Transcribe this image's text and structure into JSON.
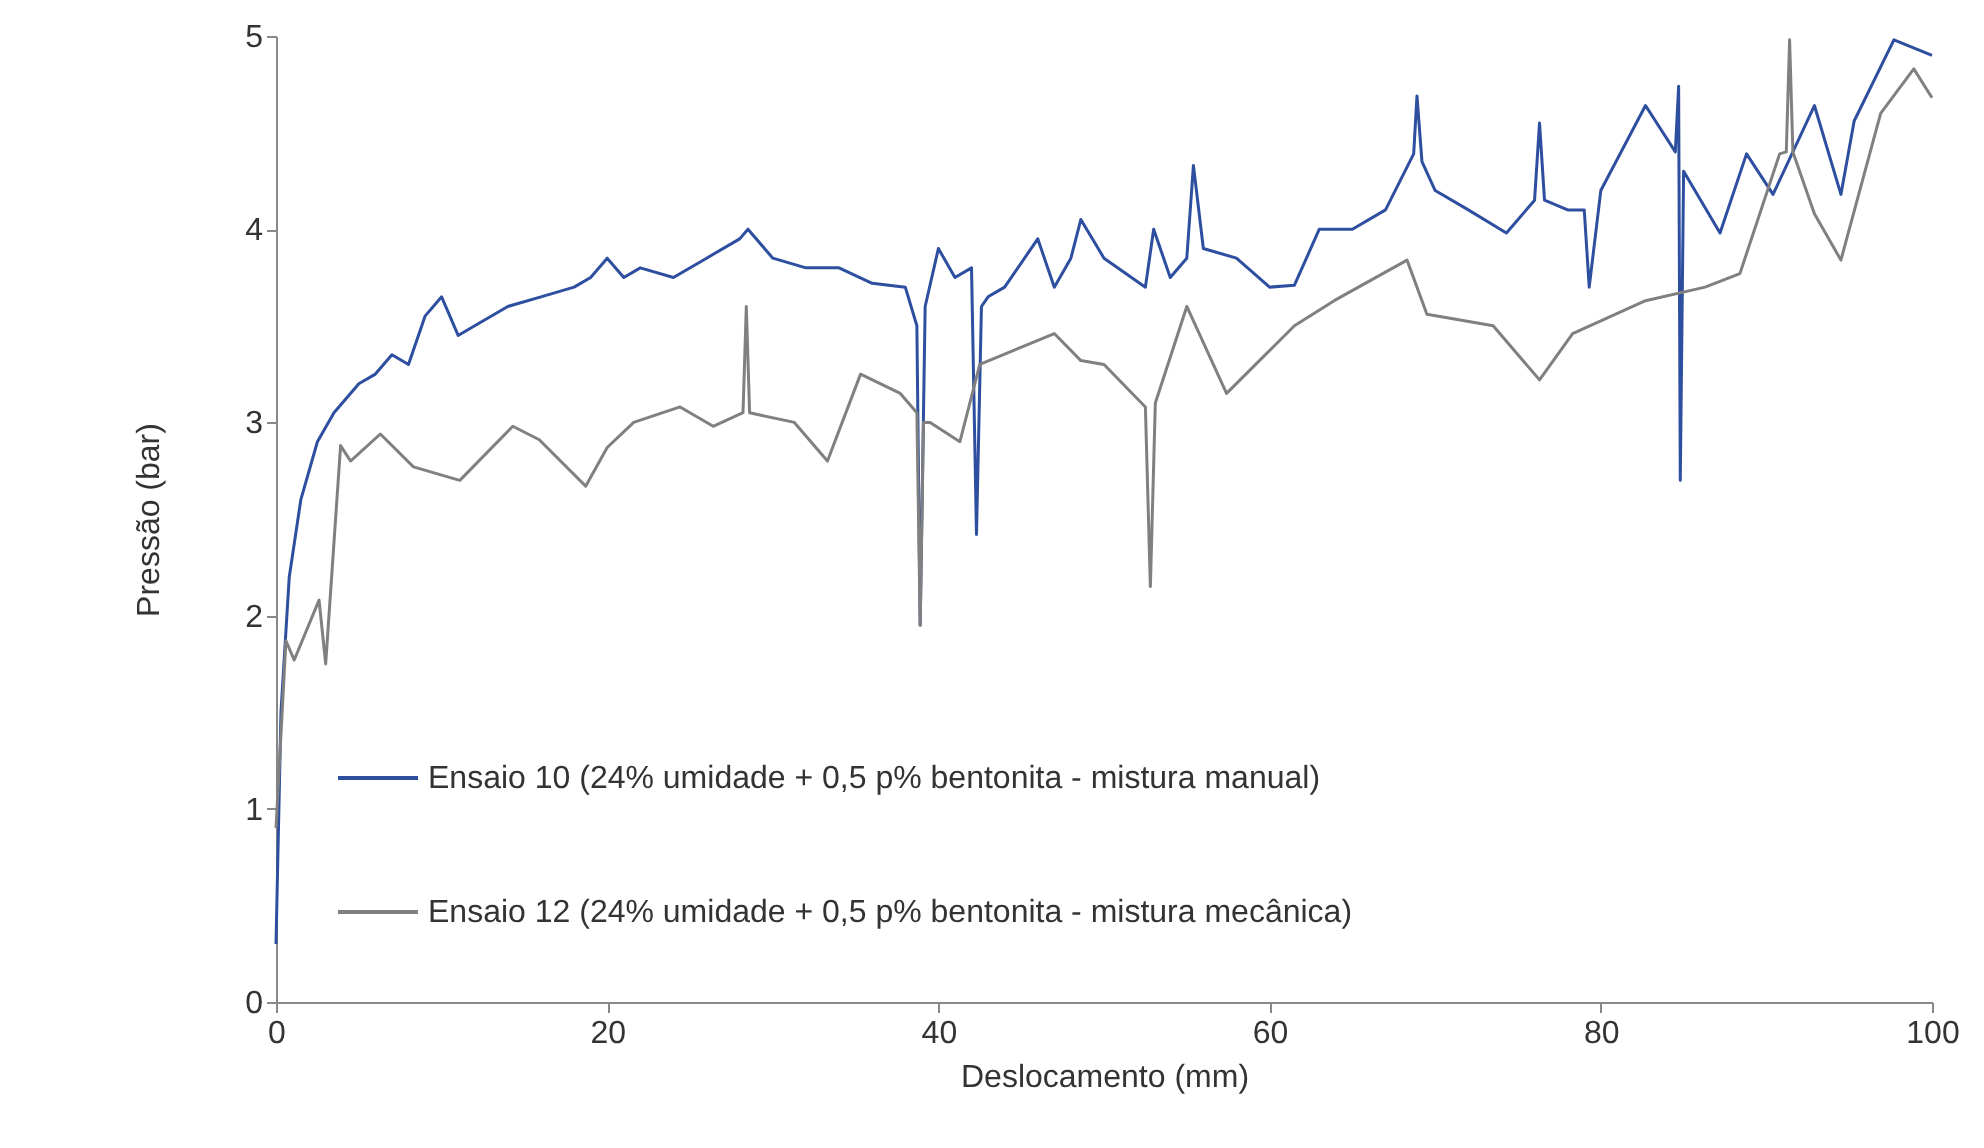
{
  "chart_data": {
    "type": "line",
    "xlabel": "Deslocamento (mm)",
    "ylabel": "Pressão  (bar)",
    "xlim": [
      0,
      100
    ],
    "xticks": [
      0,
      20,
      40,
      60,
      80,
      100
    ],
    "ylim": [
      0,
      5
    ],
    "yticks": [
      0,
      1,
      2,
      3,
      4,
      5
    ],
    "grid": false,
    "legend": "bottom left",
    "marker": "none",
    "line_style": "solid",
    "series": [
      {
        "name": "Ensaio 10 (24% umidade + 0,5 p% bentonita - mistura manual)",
        "color": "#2e4fa0",
        "x": [
          0,
          0.3,
          0.8,
          1.5,
          2.5,
          3.5,
          5,
          6,
          7,
          8,
          9,
          10,
          11,
          12,
          14,
          16,
          18,
          19,
          20,
          21,
          22,
          24,
          26,
          28,
          28.5,
          30,
          32,
          34,
          36,
          38,
          38.7,
          38.9,
          39.2,
          40,
          41,
          42,
          42.3,
          42.6,
          43,
          44,
          46,
          47,
          48,
          48.6,
          50,
          52.5,
          53,
          54,
          55,
          55.4,
          56,
          58,
          60,
          61.5,
          63,
          65,
          67,
          68.7,
          68.9,
          69.2,
          70,
          72,
          74.3,
          76,
          76.3,
          76.6,
          78,
          79,
          79.3,
          80,
          82.7,
          84.5,
          84.7,
          84.8,
          85,
          87.2,
          88.8,
          90.4,
          92.9,
          94.5,
          95.3,
          97.7,
          100
        ],
        "values": [
          0.3,
          1.5,
          2.2,
          2.6,
          2.9,
          3.05,
          3.2,
          3.25,
          3.35,
          3.3,
          3.55,
          3.65,
          3.45,
          3.5,
          3.6,
          3.65,
          3.7,
          3.75,
          3.85,
          3.75,
          3.8,
          3.75,
          3.85,
          3.95,
          4.0,
          3.85,
          3.8,
          3.8,
          3.72,
          3.7,
          3.5,
          1.95,
          3.6,
          3.9,
          3.75,
          3.8,
          2.42,
          3.6,
          3.65,
          3.7,
          3.95,
          3.7,
          3.85,
          4.05,
          3.85,
          3.7,
          4.0,
          3.75,
          3.85,
          4.33,
          3.9,
          3.85,
          3.7,
          3.71,
          4.0,
          4.0,
          4.1,
          4.39,
          4.69,
          4.35,
          4.2,
          4.1,
          3.98,
          4.15,
          4.55,
          4.15,
          4.1,
          4.1,
          3.7,
          4.2,
          4.64,
          4.4,
          4.74,
          2.7,
          4.3,
          3.98,
          4.39,
          4.18,
          4.64,
          4.18,
          4.56,
          4.98,
          4.9
        ]
      },
      {
        "name": "Ensaio 12 (24% umidade + 0,5 p% bentonita - mistura mecânica)",
        "color": "#808080",
        "x": [
          0,
          0.6,
          1.1,
          2.6,
          3,
          3.9,
          4.5,
          6.3,
          8.3,
          11.1,
          14.3,
          15.9,
          18.7,
          20,
          21.6,
          24.4,
          26.4,
          28.2,
          28.4,
          28.6,
          31.3,
          33.3,
          35.3,
          37.7,
          38.7,
          38.9,
          39.1,
          39.5,
          41.3,
          42.5,
          47,
          48.6,
          50,
          52.5,
          52.8,
          53.1,
          55,
          57.4,
          61.5,
          63.9,
          68.3,
          69.5,
          73.5,
          76.3,
          78.3,
          82.7,
          86.3,
          88.4,
          90.8,
          91.2,
          91.4,
          91.6,
          92.9,
          94.5,
          96.9,
          98.9,
          100
        ],
        "values": [
          0.9,
          1.87,
          1.77,
          2.08,
          1.75,
          2.88,
          2.8,
          2.94,
          2.77,
          2.7,
          2.98,
          2.91,
          2.67,
          2.87,
          3.0,
          3.08,
          2.98,
          3.05,
          3.6,
          3.05,
          3.0,
          2.8,
          3.25,
          3.15,
          3.05,
          1.95,
          3.0,
          3.0,
          2.9,
          3.3,
          3.46,
          3.32,
          3.3,
          3.08,
          2.15,
          3.1,
          3.6,
          3.15,
          3.5,
          3.63,
          3.84,
          3.56,
          3.5,
          3.22,
          3.46,
          3.63,
          3.7,
          3.77,
          4.39,
          4.4,
          4.98,
          4.4,
          4.08,
          3.84,
          4.6,
          4.83,
          4.68
        ]
      }
    ]
  }
}
